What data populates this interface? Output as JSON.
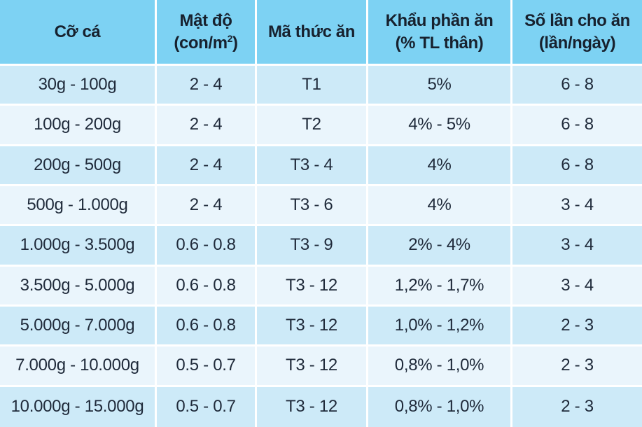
{
  "table": {
    "headers": [
      {
        "line1": "Cỡ cá",
        "line2": ""
      },
      {
        "line1": "Mật độ",
        "line2": "(con/m",
        "sup": "2",
        "line2_end": ")"
      },
      {
        "line1": "Mã thức ăn",
        "line2": ""
      },
      {
        "line1": "Khẩu phần ăn",
        "line2": "(% TL thân)"
      },
      {
        "line1": "Số lần cho ăn",
        "line2": "(lần/ngày)"
      }
    ],
    "rows": [
      [
        "30g - 100g",
        "2 - 4",
        "T1",
        "5%",
        "6 - 8"
      ],
      [
        "100g - 200g",
        "2 - 4",
        "T2",
        "4% - 5%",
        "6 - 8"
      ],
      [
        "200g - 500g",
        "2 - 4",
        "T3 - 4",
        "4%",
        "6 - 8"
      ],
      [
        "500g - 1.000g",
        "2 - 4",
        "T3 - 6",
        "4%",
        "3 - 4"
      ],
      [
        "1.000g - 3.500g",
        "0.6 - 0.8",
        "T3 - 9",
        "2% - 4%",
        "3 - 4"
      ],
      [
        "3.500g - 5.000g",
        "0.6 - 0.8",
        "T3 - 12",
        "1,2% - 1,7%",
        "3 - 4"
      ],
      [
        "5.000g - 7.000g",
        "0.6 - 0.8",
        "T3 - 12",
        "1,0% - 1,2%",
        "2 - 3"
      ],
      [
        "7.000g - 10.000g",
        "0.5 - 0.7",
        "T3 - 12",
        "0,8% - 1,0%",
        "2 - 3"
      ],
      [
        "10.000g - 15.000g",
        "0.5  - 0.7",
        "T3 - 12",
        "0,8% - 1,0%",
        "2 - 3"
      ]
    ]
  },
  "colors": {
    "header_bg": "#7dd2f3",
    "row_odd_bg": "#cdeaf8",
    "row_even_bg": "#eaf5fc",
    "text": "#1f2a3a"
  }
}
